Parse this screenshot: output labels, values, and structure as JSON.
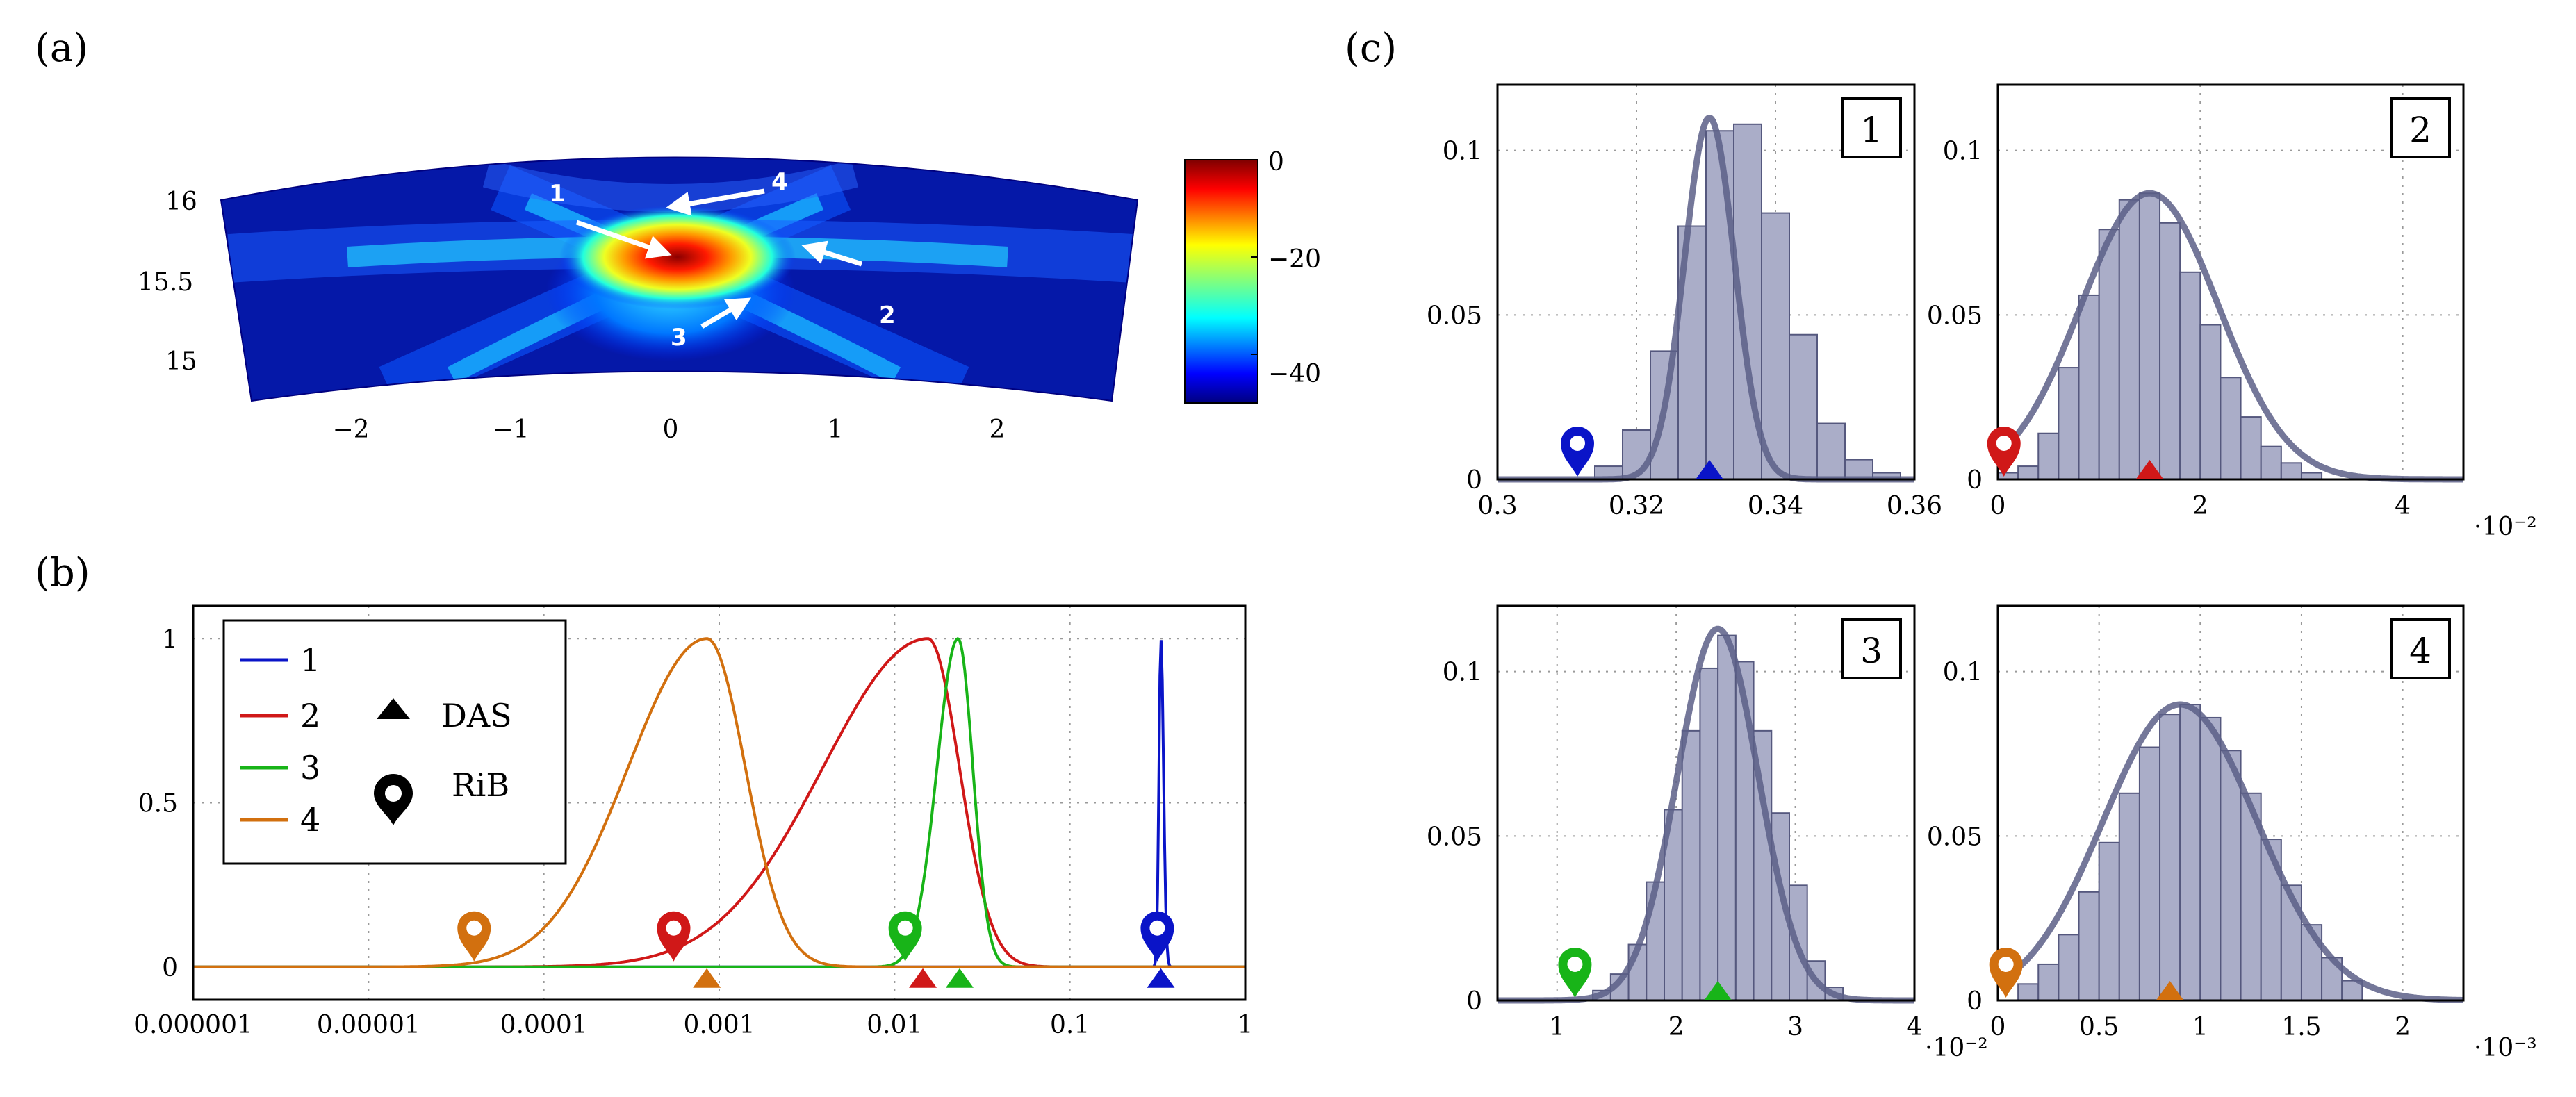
{
  "figure": {
    "panel_labels": [
      "(a)",
      "(b)",
      "(c)"
    ],
    "colors": {
      "1": "#0a14c8",
      "2": "#d01818",
      "3": "#18b418",
      "4": "#d2700f",
      "hist": "#5c5f87"
    }
  },
  "chart_data": [
    {
      "id": "a",
      "type": "heatmap",
      "x_ticks": [
        "−2",
        "−1",
        "0",
        "1",
        "2"
      ],
      "y_ticks": [
        "16",
        "15.5",
        "15"
      ],
      "colorbar": {
        "range": [
          -50,
          0
        ],
        "ticks": [
          "0",
          "−20",
          "−40"
        ],
        "colormap": "jet"
      },
      "annotations": [
        "1",
        "2",
        "3",
        "4"
      ],
      "xlim": [
        -2.8,
        2.8
      ],
      "ylim": [
        14.8,
        16.2
      ]
    },
    {
      "id": "b",
      "type": "line",
      "x_scale": "log",
      "xlim": [
        1e-06,
        1
      ],
      "ylim": [
        -0.1,
        1.1
      ],
      "x_ticks": [
        "0.000001",
        "0.00001",
        "0.0001",
        "0.001",
        "0.01",
        "0.1",
        "1"
      ],
      "y_ticks": [
        "0",
        "0.5",
        "1"
      ],
      "legend": {
        "position": "top-left",
        "series": [
          "1",
          "2",
          "3",
          "4"
        ],
        "markers": [
          "DAS",
          "RiB"
        ]
      },
      "series": [
        {
          "name": "1",
          "color": "#0a14c8",
          "peak_x": 0.33,
          "sigma_left": 0.008,
          "sigma_right": 0.012,
          "das": 0.33,
          "rib": 0.315
        },
        {
          "name": "2",
          "color": "#d01818",
          "peak_x": 0.0155,
          "sigma_left": 0.6,
          "sigma_right": 0.18,
          "das": 0.0145,
          "rib": 0.00055
        },
        {
          "name": "3",
          "color": "#18b418",
          "peak_x": 0.023,
          "sigma_left": 0.12,
          "sigma_right": 0.085,
          "das": 0.0235,
          "rib": 0.0115
        },
        {
          "name": "4",
          "color": "#d2700f",
          "peak_x": 0.00085,
          "sigma_left": 0.45,
          "sigma_right": 0.22,
          "das": 0.00085,
          "rib": 4e-05
        }
      ]
    },
    {
      "id": "c1",
      "type": "bar",
      "box_label": "1",
      "marker_color": "#0a14c8",
      "xlim": [
        0.3,
        0.36
      ],
      "ylim": [
        0,
        0.12
      ],
      "x_ticks": [
        0.3,
        0.32,
        0.34,
        0.36
      ],
      "x_tick_labels": [
        "0.3",
        "0.32",
        "0.34",
        "0.36"
      ],
      "y_ticks": [
        0,
        0.05,
        0.1
      ],
      "y_tick_labels": [
        "0",
        "0.05",
        "0.1"
      ],
      "multiplier": "",
      "bin_start": 0.314,
      "bin_width": 0.004,
      "values": [
        0.004,
        0.015,
        0.039,
        0.077,
        0.106,
        0.108,
        0.081,
        0.044,
        0.017,
        0.006,
        0.002
      ],
      "gauss": {
        "mu": 0.3305,
        "sigma": 0.0036,
        "peak": 0.11
      },
      "das": 0.3305,
      "rib": 0.3115
    },
    {
      "id": "c2",
      "type": "bar",
      "box_label": "2",
      "marker_color": "#d01818",
      "xlim": [
        0,
        4.6
      ],
      "ylim": [
        0,
        0.12
      ],
      "x_ticks": [
        0,
        2,
        4
      ],
      "x_tick_labels": [
        "0",
        "2",
        "4"
      ],
      "y_ticks": [
        0,
        0.05,
        0.1
      ],
      "y_tick_labels": [
        "0",
        "0.05",
        "0.1"
      ],
      "multiplier": "·10⁻²",
      "bin_start": 0.0,
      "bin_width": 0.2,
      "values": [
        0.002,
        0.004,
        0.014,
        0.034,
        0.056,
        0.076,
        0.085,
        0.087,
        0.078,
        0.063,
        0.047,
        0.031,
        0.019,
        0.01,
        0.005,
        0.002
      ],
      "gauss": {
        "mu": 1.5,
        "sigma": 0.68,
        "peak": 0.087
      },
      "das": 1.5,
      "rib": 0.06
    },
    {
      "id": "c3",
      "type": "bar",
      "box_label": "3",
      "marker_color": "#18b418",
      "xlim": [
        0.5,
        4
      ],
      "ylim": [
        0,
        0.12
      ],
      "x_ticks": [
        1,
        2,
        3,
        4
      ],
      "x_tick_labels": [
        "1",
        "2",
        "3",
        "4"
      ],
      "y_ticks": [
        0,
        0.05,
        0.1
      ],
      "y_tick_labels": [
        "0",
        "0.05",
        "0.1"
      ],
      "multiplier": "·10⁻²",
      "bin_start": 1.3,
      "bin_width": 0.15,
      "values": [
        0.003,
        0.008,
        0.017,
        0.036,
        0.058,
        0.082,
        0.101,
        0.111,
        0.103,
        0.082,
        0.057,
        0.035,
        0.012,
        0.004
      ],
      "gauss": {
        "mu": 2.35,
        "sigma": 0.34,
        "peak": 0.113
      },
      "das": 2.35,
      "rib": 1.15
    },
    {
      "id": "c4",
      "type": "bar",
      "box_label": "4",
      "marker_color": "#d2700f",
      "xlim": [
        0,
        2.3
      ],
      "ylim": [
        0,
        0.12
      ],
      "x_ticks": [
        0,
        0.5,
        1,
        1.5,
        2
      ],
      "x_tick_labels": [
        "0",
        "0.5",
        "1",
        "1.5",
        "2"
      ],
      "y_ticks": [
        0,
        0.05,
        0.1
      ],
      "y_tick_labels": [
        "0",
        "0.05",
        "0.1"
      ],
      "multiplier": "·10⁻³",
      "bin_start": 0.1,
      "bin_width": 0.1,
      "values": [
        0.005,
        0.011,
        0.02,
        0.033,
        0.048,
        0.063,
        0.077,
        0.087,
        0.09,
        0.086,
        0.076,
        0.063,
        0.049,
        0.035,
        0.023,
        0.013,
        0.006
      ],
      "gauss": {
        "mu": 0.9,
        "sigma": 0.38,
        "peak": 0.09
      },
      "das": 0.85,
      "rib": 0.04
    }
  ]
}
